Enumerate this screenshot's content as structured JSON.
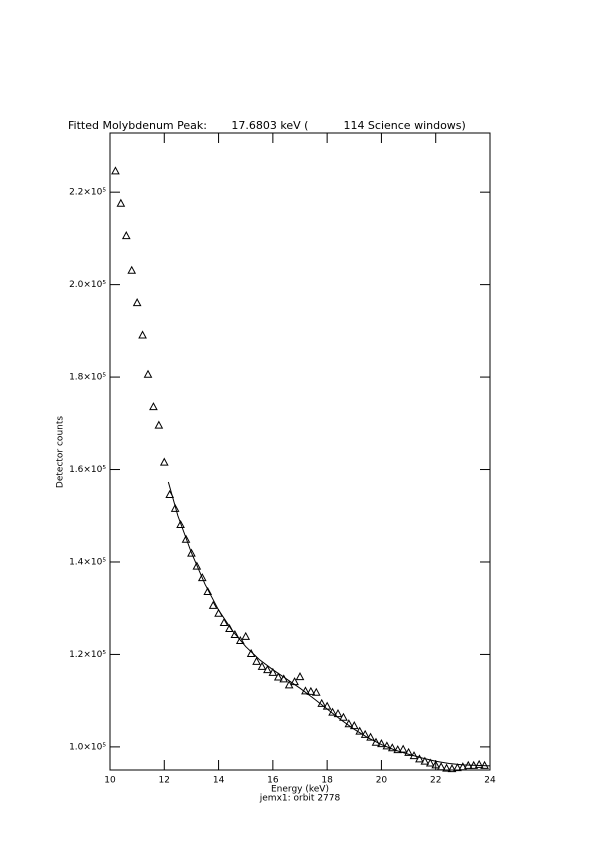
{
  "chart_data": {
    "type": "scatter",
    "title": "Fitted Molybdenum Peak:       17.6803 keV (          114 Science windows)",
    "x_label": "Energy (keV)",
    "y_label": "Detector counts",
    "footnote": "jemx1: orbit 2778",
    "xlim": [
      10,
      24
    ],
    "xticks": [
      10,
      12,
      14,
      16,
      18,
      20,
      22,
      24
    ],
    "ylim": [
      95000,
      232800
    ],
    "yticks": [
      {
        "value": 100000,
        "label": "1.0×10⁵"
      },
      {
        "value": 120000,
        "label": "1.2×10⁵"
      },
      {
        "value": 140000,
        "label": "1.4×10⁵"
      },
      {
        "value": 160000,
        "label": "1.6×10⁵"
      },
      {
        "value": 180000,
        "label": "1.8×10⁵"
      },
      {
        "value": 200000,
        "label": "2.0×10⁵"
      },
      {
        "value": 220000,
        "label": "2.2×10⁵"
      }
    ],
    "series": [
      {
        "style": "triangle",
        "color": "#000000",
        "x": [
          10.2,
          10.4,
          10.6,
          10.8,
          11.0,
          11.2,
          11.4,
          11.6,
          11.8,
          12.0,
          12.2,
          12.4,
          12.6,
          12.8,
          13.0,
          13.2,
          13.4,
          13.6,
          13.8,
          14.0,
          14.2,
          14.4,
          14.6,
          14.8,
          15.0,
          15.2,
          15.4,
          15.6,
          15.8,
          16.0,
          16.2,
          16.4,
          16.6,
          16.8,
          17.0,
          17.2,
          17.4,
          17.6,
          17.8,
          18.0,
          18.2,
          18.4,
          18.6,
          18.8,
          19.0,
          19.2,
          19.4,
          19.6,
          19.8,
          20.0,
          20.2,
          20.4,
          20.6,
          20.8,
          21.0,
          21.2,
          21.4,
          21.6,
          21.8,
          22.0,
          22.2,
          22.4,
          22.6,
          22.8,
          23.0,
          23.2,
          23.4,
          23.6,
          23.8
        ],
        "values": [
          224500,
          217500,
          210500,
          203000,
          196000,
          189000,
          180500,
          173500,
          169500,
          161500,
          154500,
          151500,
          148000,
          144800,
          141800,
          139000,
          136500,
          133500,
          130500,
          128800,
          126800,
          125500,
          124200,
          122900,
          123800,
          120100,
          118400,
          117300,
          116600,
          116000,
          115000,
          114600,
          113300,
          114000,
          115100,
          112000,
          111900,
          111700,
          109300,
          108700,
          107400,
          107100,
          106300,
          104900,
          104500,
          103300,
          102600,
          102000,
          100900,
          100600,
          100100,
          99700,
          99300,
          99400,
          98700,
          98000,
          97300,
          96800,
          96400,
          96000,
          95600,
          95300,
          95200,
          95400,
          95600,
          95900,
          95900,
          96100,
          95900
        ]
      },
      {
        "style": "line",
        "color": "#000000",
        "x": [
          12.15,
          12.5,
          13,
          13.5,
          14,
          14.5,
          15,
          15.5,
          16,
          16.5,
          17,
          17.5,
          18,
          18.5,
          19,
          19.5,
          20,
          20.5,
          21,
          21.5,
          22,
          22.5,
          23,
          23.5,
          24
        ],
        "values": [
          157300,
          150000,
          142000,
          135200,
          129600,
          125200,
          121700,
          118900,
          116700,
          114700,
          112700,
          110500,
          108200,
          105900,
          103800,
          102000,
          100500,
          99300,
          98400,
          97600,
          96900,
          96400,
          96100,
          96000,
          95900
        ]
      }
    ]
  }
}
